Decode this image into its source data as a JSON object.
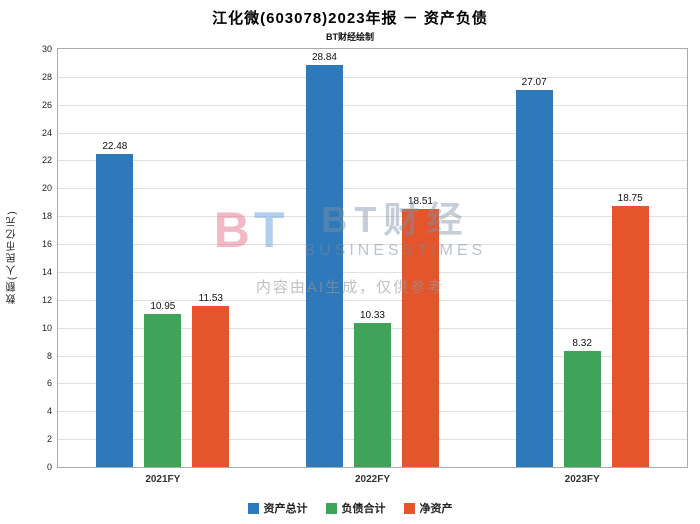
{
  "header": {
    "title": "江化微(603078)2023年报 － 资产负债",
    "subtitle": "BT财经绘制"
  },
  "watermark": {
    "mark_b": "B",
    "mark_t": "T",
    "brand": "BT财经",
    "brand_sub": "BUSINESSTIMES",
    "ai_note": "内容由AI生成，仅供参考"
  },
  "chart_data": {
    "type": "bar",
    "title": "江化微(603078)2023年报 － 资产负债",
    "subtitle": "BT财经绘制",
    "xlabel": "",
    "ylabel": "数额(人民币亿元)",
    "ylim": [
      0,
      30
    ],
    "ytick_step": 2,
    "grid": true,
    "legend_position": "bottom",
    "categories": [
      "2021FY",
      "2022FY",
      "2023FY"
    ],
    "series": [
      {
        "name": "资产总计",
        "color": "#2e79b9",
        "values": [
          22.48,
          28.84,
          27.07
        ]
      },
      {
        "name": "负债合计",
        "color": "#3fa45a",
        "values": [
          10.95,
          10.33,
          8.32
        ]
      },
      {
        "name": "净资产",
        "color": "#e4552c",
        "values": [
          11.53,
          18.51,
          18.75
        ]
      }
    ]
  }
}
